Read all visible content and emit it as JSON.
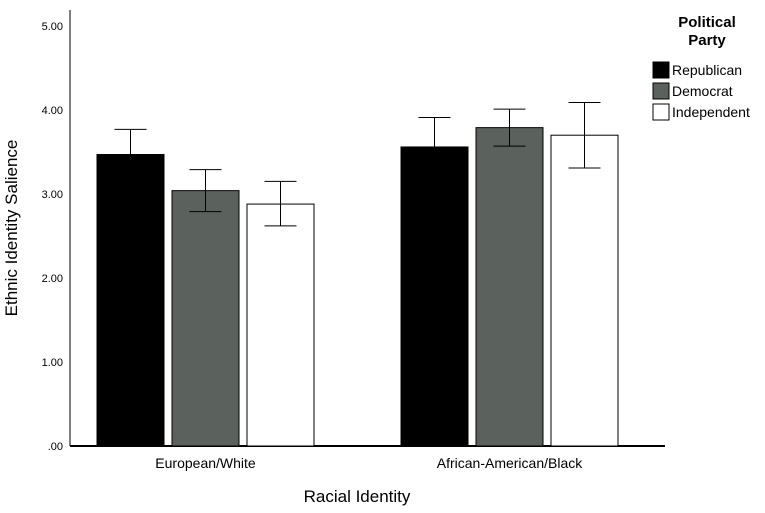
{
  "chart_data": {
    "type": "bar",
    "xlabel": "Racial Identity",
    "ylabel": "Ethnic Identity Salience",
    "ylim": [
      0,
      5
    ],
    "yticks": [
      ".00",
      "1.00",
      "2.00",
      "3.00",
      "4.00",
      "5.00"
    ],
    "categories": [
      "European/White",
      "African-American/Black"
    ],
    "legend_title": "Political Party",
    "legend_placement": "top-right",
    "grid": false,
    "series": [
      {
        "name": "Republican",
        "color": "#000000",
        "values": [
          3.47,
          3.56
        ],
        "err_low": [
          3.17,
          3.21
        ],
        "err_high": [
          3.77,
          3.91
        ]
      },
      {
        "name": "Democrat",
        "color": "#5b625d",
        "values": [
          3.04,
          3.79
        ],
        "err_low": [
          2.79,
          3.57
        ],
        "err_high": [
          3.29,
          4.01
        ]
      },
      {
        "name": "Independent",
        "color": "#ffffff",
        "values": [
          2.88,
          3.7
        ],
        "err_low": [
          2.62,
          3.31
        ],
        "err_high": [
          3.15,
          4.09
        ]
      }
    ]
  }
}
